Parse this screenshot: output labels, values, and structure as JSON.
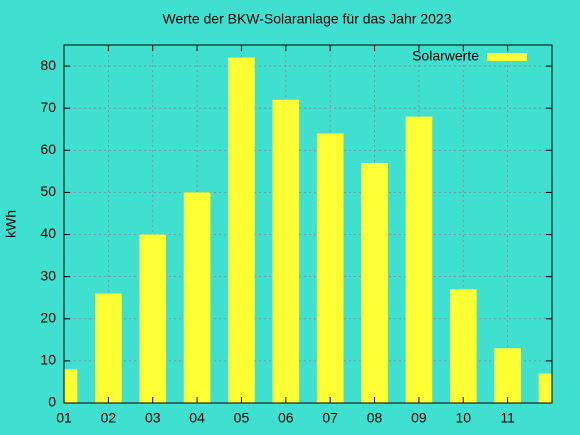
{
  "chart_data": {
    "type": "bar",
    "title": "Werte der BKW-Solaranlage für das Jahr 2023",
    "ylabel": "kWh",
    "x": [
      1,
      2,
      3,
      4,
      5,
      6,
      7,
      8,
      9,
      10,
      11,
      12
    ],
    "series": [
      {
        "name": "Solarwerte",
        "color": "#ffff33",
        "values": [
          8,
          26,
          40,
          50,
          82,
          72,
          64,
          57,
          68,
          27,
          13,
          7
        ]
      }
    ],
    "xlim": [
      1,
      12
    ],
    "xticks": [
      {
        "value": 1,
        "label": "01"
      },
      {
        "value": 2,
        "label": "02"
      },
      {
        "value": 3,
        "label": "03"
      },
      {
        "value": 4,
        "label": "04"
      },
      {
        "value": 5,
        "label": "05"
      },
      {
        "value": 6,
        "label": "06"
      },
      {
        "value": 7,
        "label": "07"
      },
      {
        "value": 8,
        "label": "08"
      },
      {
        "value": 9,
        "label": "09"
      },
      {
        "value": 10,
        "label": "10"
      },
      {
        "value": 11,
        "label": "11"
      }
    ],
    "ylim": [
      0,
      85
    ],
    "yticks": [
      0,
      10,
      20,
      30,
      40,
      50,
      60,
      70,
      80
    ],
    "grid": true,
    "legend": "top-right"
  }
}
